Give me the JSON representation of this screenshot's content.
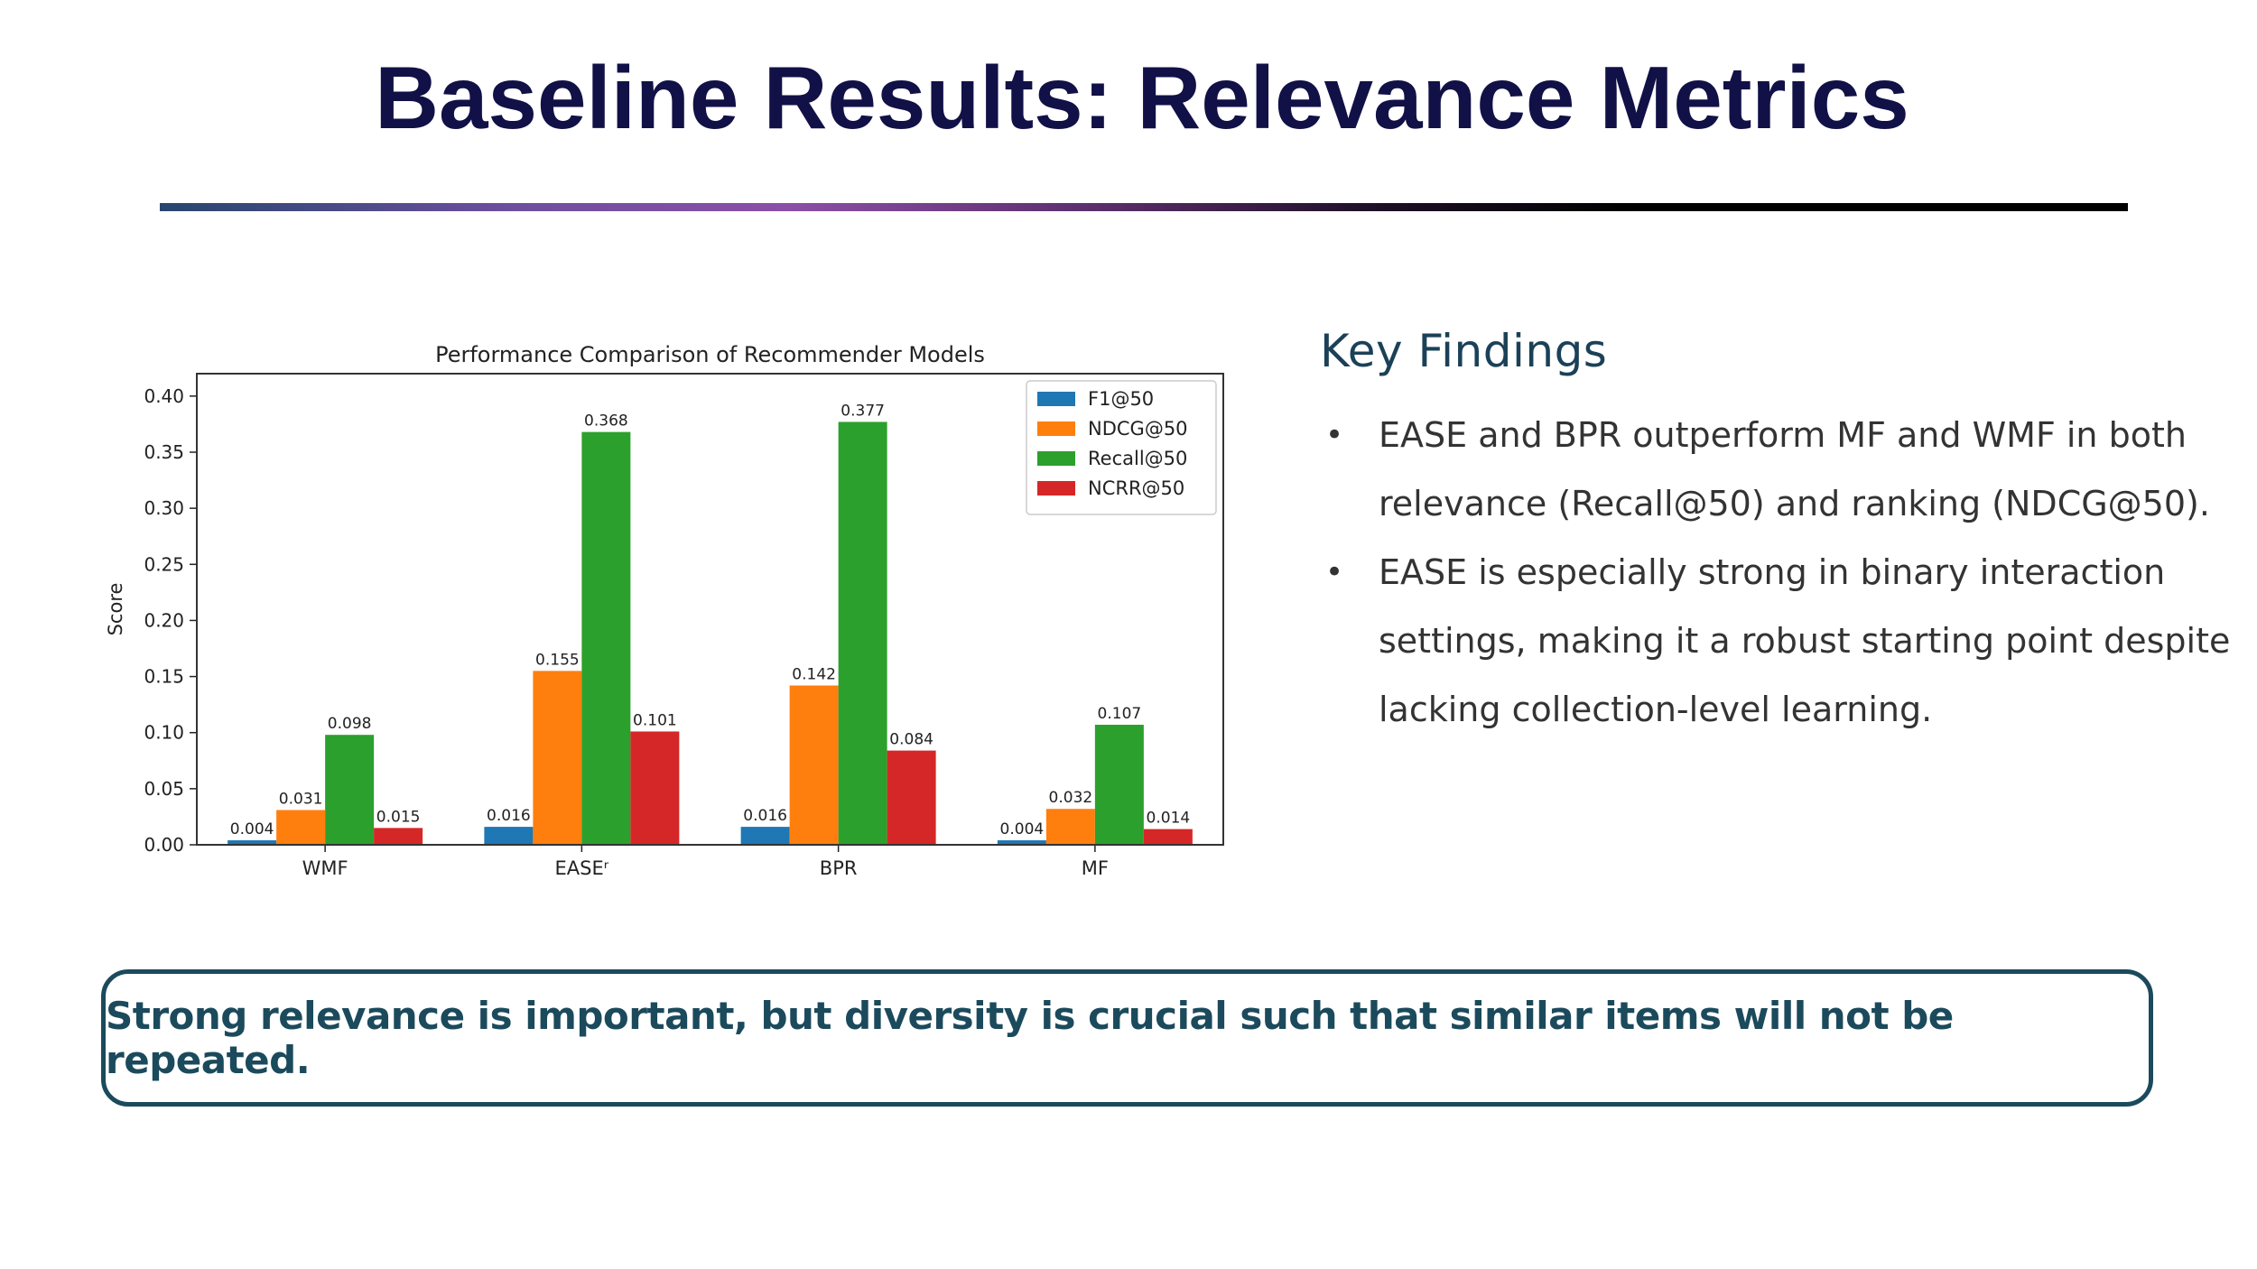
{
  "title": "Baseline Results: Relevance Metrics",
  "findings": {
    "heading": "Key Findings",
    "items": [
      "EASE and BPR outperform MF and WMF in both relevance (Recall@50) and ranking (NDCG@50).",
      "EASE is especially strong in binary interaction settings, making it a robust starting point despite lacking collection-level learning."
    ]
  },
  "callout": "Strong relevance is important, but diversity is crucial such that similar items will not be repeated.",
  "chart_data": {
    "type": "bar",
    "title": "Performance Comparison of Recommender Models",
    "xlabel": "",
    "ylabel": "Score",
    "ylim": [
      0,
      0.42
    ],
    "yticks": [
      "0.00",
      "0.05",
      "0.10",
      "0.15",
      "0.20",
      "0.25",
      "0.30",
      "0.35",
      "0.40"
    ],
    "categories": [
      "WMF",
      "EASEʳ",
      "BPR",
      "MF"
    ],
    "series": [
      {
        "name": "F1@50",
        "color": "#1f77b4",
        "values": [
          0.004,
          0.016,
          0.016,
          0.004
        ],
        "labels": [
          "0.004",
          "0.016",
          "0.016",
          "0.004"
        ]
      },
      {
        "name": "NDCG@50",
        "color": "#ff7f0e",
        "values": [
          0.031,
          0.155,
          0.142,
          0.032
        ],
        "labels": [
          "0.031",
          "0.155",
          "0.142",
          "0.032"
        ]
      },
      {
        "name": "Recall@50",
        "color": "#2ca02c",
        "values": [
          0.098,
          0.368,
          0.377,
          0.107
        ],
        "labels": [
          "0.098",
          "0.368",
          "0.377",
          "0.107"
        ]
      },
      {
        "name": "NCRR@50",
        "color": "#d62728",
        "values": [
          0.015,
          0.101,
          0.084,
          0.014
        ],
        "labels": [
          "0.015",
          "0.101",
          "0.084",
          "0.014"
        ]
      }
    ],
    "legend": "top-right",
    "grid": false
  }
}
